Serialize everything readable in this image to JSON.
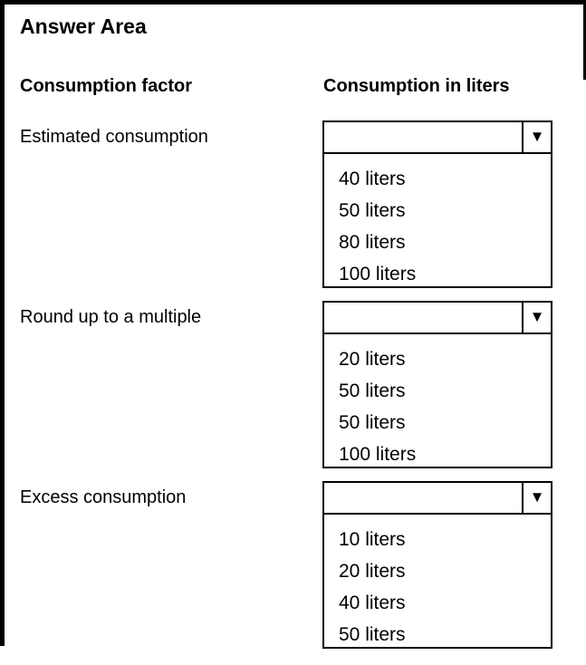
{
  "title": "Answer Area",
  "columns": {
    "factor": "Consumption factor",
    "value": "Consumption in liters"
  },
  "rows": [
    {
      "label": "Estimated consumption",
      "selected": "",
      "options": [
        "40 liters",
        "50 liters",
        "80 liters",
        "100 liters"
      ]
    },
    {
      "label": "Round up to a multiple",
      "selected": "",
      "options": [
        "20 liters",
        "50 liters",
        "50 liters",
        "100 liters"
      ]
    },
    {
      "label": "Excess consumption",
      "selected": "",
      "options": [
        "10 liters",
        "20 liters",
        "40 liters",
        "50 liters"
      ]
    }
  ],
  "icons": {
    "dropdown_arrow": "▼"
  },
  "colors": {
    "border": "#000000",
    "text": "#000000",
    "background": "#ffffff"
  }
}
